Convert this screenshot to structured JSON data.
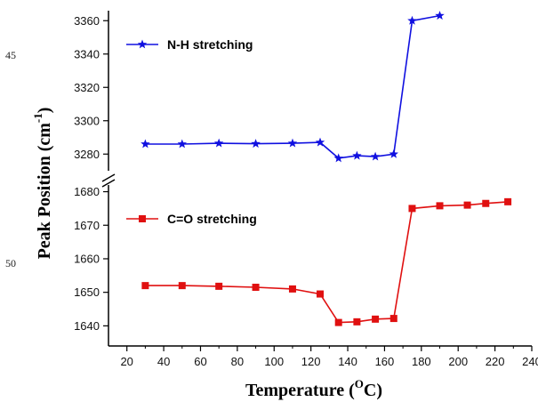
{
  "margin_numbers": [
    "45",
    "50"
  ],
  "chart_data": {
    "type": "line",
    "xlabel": "Temperature (",
    "xlabel_sup": "O",
    "xlabel_suffix": "C)",
    "ylabel": "Peak Position (cm",
    "ylabel_sup": "-1",
    "ylabel_suffix": ")",
    "xlim": [
      10,
      240
    ],
    "x_ticks": [
      "20",
      "40",
      "60",
      "80",
      "100",
      "120",
      "140",
      "160",
      "180",
      "200",
      "220",
      "240"
    ],
    "axis_break": true,
    "upper_panel": {
      "ylim": [
        3270,
        3366
      ],
      "y_ticks": [
        "3280",
        "3300",
        "3320",
        "3340",
        "3360"
      ]
    },
    "lower_panel": {
      "ylim": [
        1634,
        1682
      ],
      "y_ticks": [
        "1640",
        "1650",
        "1660",
        "1670",
        "1680"
      ]
    },
    "series": [
      {
        "name": "N-H stretching",
        "color": "#1010e0",
        "marker": "star",
        "panel": "upper",
        "x": [
          30,
          50,
          70,
          90,
          110,
          125,
          135,
          145,
          155,
          165,
          175,
          190
        ],
        "y": [
          3286,
          3286,
          3286.5,
          3286.2,
          3286.5,
          3287,
          3277.5,
          3279,
          3278.5,
          3280,
          3360,
          3363
        ]
      },
      {
        "name": "C=O stretching",
        "color": "#e01010",
        "marker": "square",
        "panel": "lower",
        "x": [
          30,
          50,
          70,
          90,
          110,
          125,
          135,
          145,
          155,
          165,
          175,
          190,
          205,
          215,
          227
        ],
        "y": [
          1652,
          1652,
          1651.8,
          1651.5,
          1651,
          1649.5,
          1641,
          1641.2,
          1642,
          1642.2,
          1675,
          1675.8,
          1676,
          1676.5,
          1677
        ]
      }
    ]
  }
}
